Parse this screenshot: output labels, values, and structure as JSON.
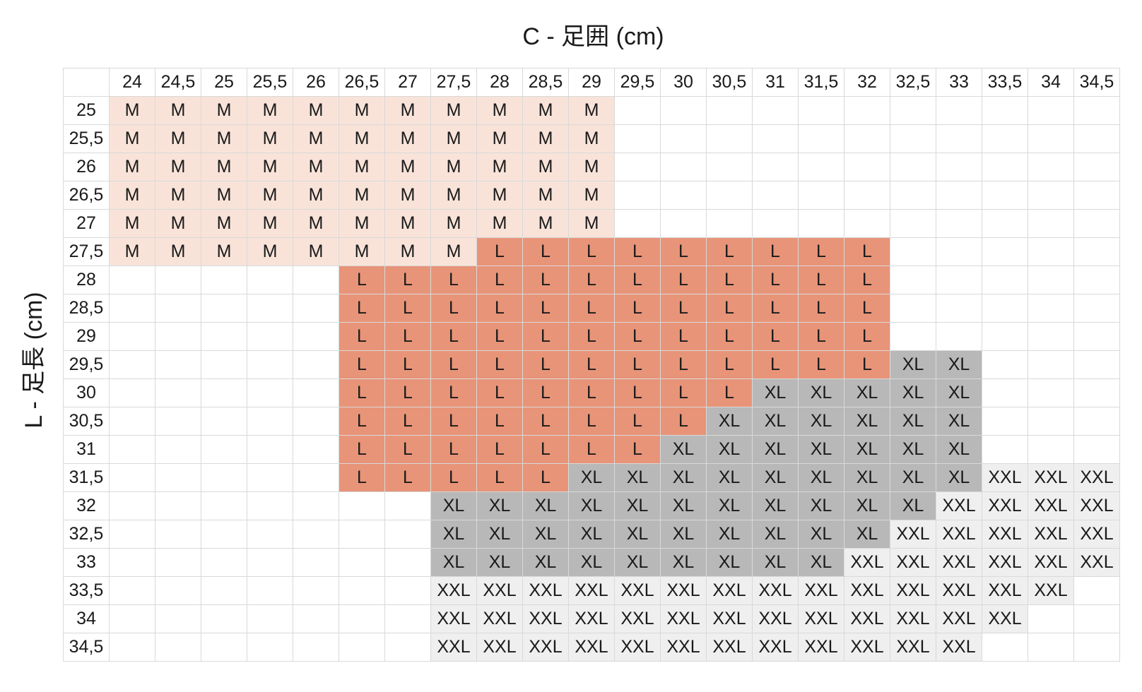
{
  "chart_data": {
    "type": "table",
    "xlabel": "C - 足囲 (cm)",
    "ylabel": "L - 足長 (cm)",
    "columns": [
      "24",
      "24,5",
      "25",
      "25,5",
      "26",
      "26,5",
      "27",
      "27,5",
      "28",
      "28,5",
      "29",
      "29,5",
      "30",
      "30,5",
      "31",
      "31,5",
      "32",
      "32,5",
      "33",
      "33,5",
      "34",
      "34,5"
    ],
    "rows": [
      "25",
      "25,5",
      "26",
      "26,5",
      "27",
      "27,5",
      "28",
      "28,5",
      "29",
      "29,5",
      "30",
      "30,5",
      "31",
      "31,5",
      "32",
      "32,5",
      "33",
      "33,5",
      "34",
      "34,5"
    ],
    "values": [
      [
        "M",
        "M",
        "M",
        "M",
        "M",
        "M",
        "M",
        "M",
        "M",
        "M",
        "M",
        "",
        "",
        "",
        "",
        "",
        "",
        "",
        "",
        "",
        "",
        ""
      ],
      [
        "M",
        "M",
        "M",
        "M",
        "M",
        "M",
        "M",
        "M",
        "M",
        "M",
        "M",
        "",
        "",
        "",
        "",
        "",
        "",
        "",
        "",
        "",
        "",
        ""
      ],
      [
        "M",
        "M",
        "M",
        "M",
        "M",
        "M",
        "M",
        "M",
        "M",
        "M",
        "M",
        "",
        "",
        "",
        "",
        "",
        "",
        "",
        "",
        "",
        "",
        ""
      ],
      [
        "M",
        "M",
        "M",
        "M",
        "M",
        "M",
        "M",
        "M",
        "M",
        "M",
        "M",
        "",
        "",
        "",
        "",
        "",
        "",
        "",
        "",
        "",
        "",
        ""
      ],
      [
        "M",
        "M",
        "M",
        "M",
        "M",
        "M",
        "M",
        "M",
        "M",
        "M",
        "M",
        "",
        "",
        "",
        "",
        "",
        "",
        "",
        "",
        "",
        "",
        ""
      ],
      [
        "M",
        "M",
        "M",
        "M",
        "M",
        "M",
        "M",
        "M",
        "L",
        "L",
        "L",
        "L",
        "L",
        "L",
        "L",
        "L",
        "L",
        "",
        "",
        "",
        "",
        ""
      ],
      [
        "",
        "",
        "",
        "",
        "",
        "L",
        "L",
        "L",
        "L",
        "L",
        "L",
        "L",
        "L",
        "L",
        "L",
        "L",
        "L",
        "",
        "",
        "",
        "",
        ""
      ],
      [
        "",
        "",
        "",
        "",
        "",
        "L",
        "L",
        "L",
        "L",
        "L",
        "L",
        "L",
        "L",
        "L",
        "L",
        "L",
        "L",
        "",
        "",
        "",
        "",
        ""
      ],
      [
        "",
        "",
        "",
        "",
        "",
        "L",
        "L",
        "L",
        "L",
        "L",
        "L",
        "L",
        "L",
        "L",
        "L",
        "L",
        "L",
        "",
        "",
        "",
        "",
        ""
      ],
      [
        "",
        "",
        "",
        "",
        "",
        "L",
        "L",
        "L",
        "L",
        "L",
        "L",
        "L",
        "L",
        "L",
        "L",
        "L",
        "L",
        "XL",
        "XL",
        "",
        "",
        ""
      ],
      [
        "",
        "",
        "",
        "",
        "",
        "L",
        "L",
        "L",
        "L",
        "L",
        "L",
        "L",
        "L",
        "L",
        "XL",
        "XL",
        "XL",
        "XL",
        "XL",
        "",
        "",
        ""
      ],
      [
        "",
        "",
        "",
        "",
        "",
        "L",
        "L",
        "L",
        "L",
        "L",
        "L",
        "L",
        "L",
        "XL",
        "XL",
        "XL",
        "XL",
        "XL",
        "XL",
        "",
        "",
        ""
      ],
      [
        "",
        "",
        "",
        "",
        "",
        "L",
        "L",
        "L",
        "L",
        "L",
        "L",
        "L",
        "XL",
        "XL",
        "XL",
        "XL",
        "XL",
        "XL",
        "XL",
        "",
        "",
        ""
      ],
      [
        "",
        "",
        "",
        "",
        "",
        "L",
        "L",
        "L",
        "L",
        "L",
        "XL",
        "XL",
        "XL",
        "XL",
        "XL",
        "XL",
        "XL",
        "XL",
        "XL",
        "XXL",
        "XXL",
        "XXL"
      ],
      [
        "",
        "",
        "",
        "",
        "",
        "",
        "",
        "XL",
        "XL",
        "XL",
        "XL",
        "XL",
        "XL",
        "XL",
        "XL",
        "XL",
        "XL",
        "XL",
        "XXL",
        "XXL",
        "XXL",
        "XXL"
      ],
      [
        "",
        "",
        "",
        "",
        "",
        "",
        "",
        "XL",
        "XL",
        "XL",
        "XL",
        "XL",
        "XL",
        "XL",
        "XL",
        "XL",
        "XL",
        "XXL",
        "XXL",
        "XXL",
        "XXL",
        "XXL"
      ],
      [
        "",
        "",
        "",
        "",
        "",
        "",
        "",
        "XL",
        "XL",
        "XL",
        "XL",
        "XL",
        "XL",
        "XL",
        "XL",
        "XL",
        "XXL",
        "XXL",
        "XXL",
        "XXL",
        "XXL",
        "XXL"
      ],
      [
        "",
        "",
        "",
        "",
        "",
        "",
        "",
        "XXL",
        "XXL",
        "XXL",
        "XXL",
        "XXL",
        "XXL",
        "XXL",
        "XXL",
        "XXL",
        "XXL",
        "XXL",
        "XXL",
        "XXL",
        "XXL",
        ""
      ],
      [
        "",
        "",
        "",
        "",
        "",
        "",
        "",
        "XXL",
        "XXL",
        "XXL",
        "XXL",
        "XXL",
        "XXL",
        "XXL",
        "XXL",
        "XXL",
        "XXL",
        "XXL",
        "XXL",
        "XXL",
        "",
        ""
      ],
      [
        "",
        "",
        "",
        "",
        "",
        "",
        "",
        "XXL",
        "XXL",
        "XXL",
        "XXL",
        "XXL",
        "XXL",
        "XXL",
        "XXL",
        "XXL",
        "XXL",
        "XXL",
        "XXL",
        "",
        "",
        ""
      ]
    ],
    "colors": {
      "M": "#f9e3d9",
      "L": "#e89478",
      "XL": "#b8b8b8",
      "XXL": "#efefef"
    }
  }
}
